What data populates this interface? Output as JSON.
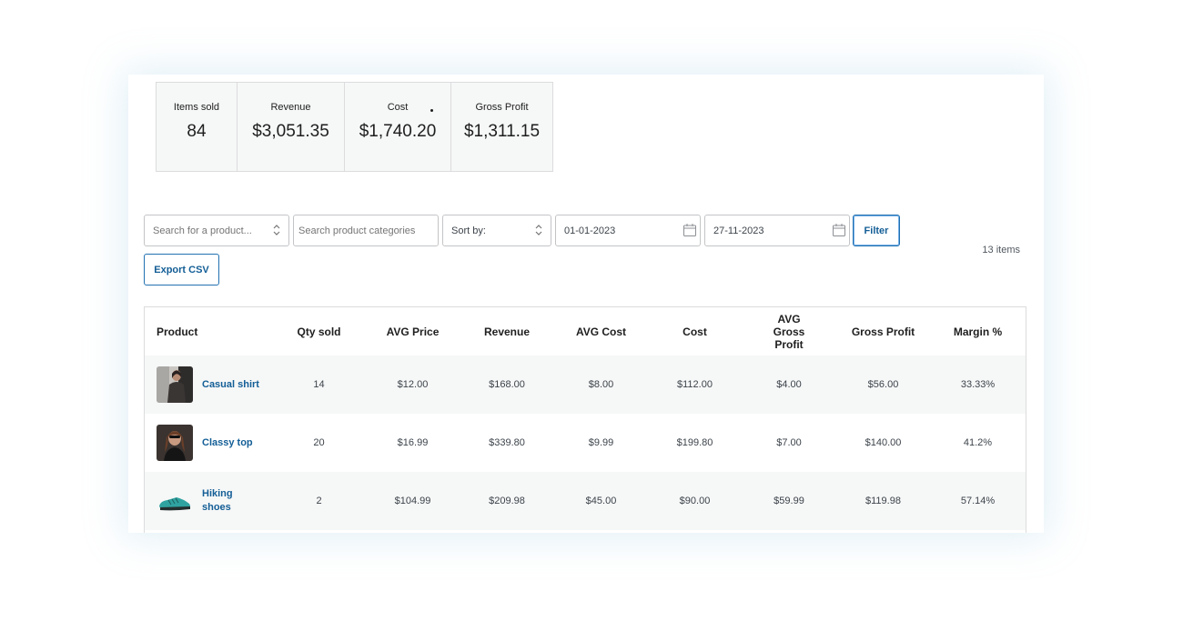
{
  "stats": [
    {
      "label": "Items sold",
      "value": "84"
    },
    {
      "label": "Revenue",
      "value": "$3,051.35"
    },
    {
      "label": "Cost",
      "value": "$1,740.20"
    },
    {
      "label": "Gross Profit",
      "value": "$1,311.15"
    }
  ],
  "filters": {
    "product_placeholder": "Search for a product...",
    "category_placeholder": "Search product categories",
    "sort_label": "Sort by:",
    "date_from": "01-01-2023",
    "date_to": "27-11-2023",
    "filter_label": "Filter",
    "export_label": "Export CSV",
    "items_count": "13 items"
  },
  "table": {
    "headers": [
      "Product",
      "Qty sold",
      "AVG Price",
      "Revenue",
      "AVG Cost",
      "Cost",
      "AVG Gross Profit",
      "Gross Profit",
      "Margin %"
    ],
    "rows": [
      {
        "product": "Casual shirt",
        "qty": "14",
        "avg_price": "$12.00",
        "revenue": "$168.00",
        "avg_cost": "$8.00",
        "cost": "$112.00",
        "avg_gross_profit": "$4.00",
        "gross_profit": "$56.00",
        "margin": "33.33%"
      },
      {
        "product": "Classy top",
        "qty": "20",
        "avg_price": "$16.99",
        "revenue": "$339.80",
        "avg_cost": "$9.99",
        "cost": "$199.80",
        "avg_gross_profit": "$7.00",
        "gross_profit": "$140.00",
        "margin": "41.2%"
      },
      {
        "product": "Hiking shoes",
        "qty": "2",
        "avg_price": "$104.99",
        "revenue": "$209.98",
        "avg_cost": "$45.00",
        "cost": "$90.00",
        "avg_gross_profit": "$59.99",
        "gross_profit": "$119.98",
        "margin": "57.14%"
      }
    ]
  },
  "colors": {
    "accent": "#135e96",
    "border": "#dcdcde",
    "stripe": "#f6f7f7"
  }
}
